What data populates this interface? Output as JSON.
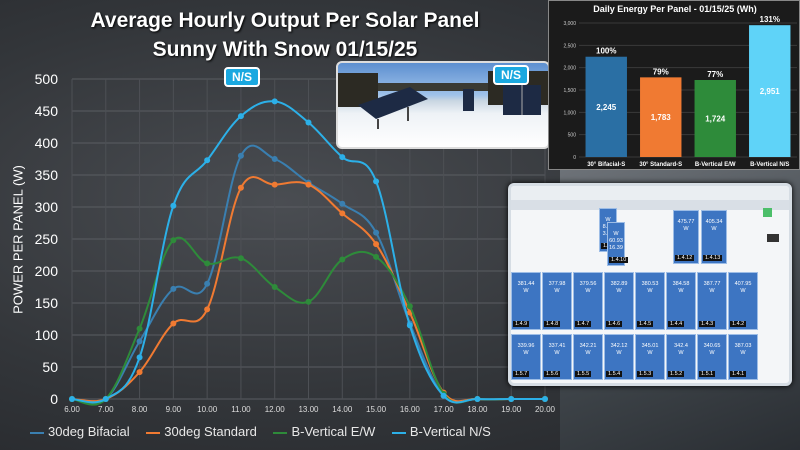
{
  "chart_data": [
    {
      "type": "line",
      "title": "Average Hourly Output Per Solar Panel",
      "subtitle": "Sunny With Snow 01/15/25",
      "ylabel": "POWER PER PANEL (W)",
      "xlabel": "",
      "x": [
        6,
        7,
        8,
        9,
        10,
        11,
        12,
        13,
        14,
        15,
        16,
        17,
        18,
        19,
        20
      ],
      "x_tick_labels": [
        "6.00",
        "7.00",
        "8.00",
        "9.00",
        "10.00",
        "11.00",
        "12.00",
        "13.00",
        "14.00",
        "15.00",
        "16.00",
        "17.00",
        "18.00",
        "19.00",
        "20.00"
      ],
      "ylim": [
        0,
        500
      ],
      "y_ticks": [
        0,
        50,
        100,
        150,
        200,
        250,
        300,
        350,
        400,
        450,
        500
      ],
      "grid": true,
      "legend": "bottom",
      "annotations": [
        "N/S"
      ],
      "series": [
        {
          "name": "30deg Bifacial",
          "color": "#3a7fb0",
          "values": [
            0,
            0,
            90,
            172,
            180,
            380,
            375,
            338,
            305,
            260,
            118,
            5,
            0,
            0,
            0
          ]
        },
        {
          "name": "30deg Standard",
          "color": "#f07a32",
          "values": [
            0,
            0,
            42,
            118,
            140,
            330,
            335,
            335,
            290,
            242,
            135,
            10,
            0,
            0,
            0
          ]
        },
        {
          "name": "B-Vertical E/W",
          "color": "#2e8b3a",
          "values": [
            0,
            0,
            110,
            248,
            212,
            220,
            175,
            152,
            218,
            222,
            145,
            8,
            0,
            0,
            0
          ]
        },
        {
          "name": "B-Vertical N/S",
          "color": "#2cb0e8",
          "values": [
            0,
            0,
            65,
            302,
            373,
            442,
            465,
            432,
            378,
            340,
            115,
            5,
            0,
            0,
            0
          ]
        }
      ]
    },
    {
      "type": "bar",
      "title": "Daily Energy Per Panel - 01/15/25 (Wh)",
      "categories": [
        "30° Bifacial-S",
        "30° Standard-S",
        "B-Vertical E/W",
        "B-Vertical N/S"
      ],
      "values": [
        2245,
        1783,
        1724,
        2951
      ],
      "value_labels": [
        "2,245",
        "1,783",
        "1,724",
        "2,951"
      ],
      "percent_labels": [
        "100%",
        "79%",
        "77%",
        "131%"
      ],
      "colors": [
        "#2a6fa4",
        "#f07a32",
        "#2e8b3a",
        "#5fd3f8"
      ],
      "ylim": [
        0,
        3000
      ],
      "y_ticks": [
        0,
        500,
        1000,
        1500,
        2000,
        2500,
        3000
      ],
      "y_tick_labels": [
        "0",
        "500",
        "1,000",
        "1,500",
        "2,000",
        "2,500",
        "3,000"
      ]
    }
  ],
  "photo": {
    "tags": [
      "N/S"
    ]
  },
  "monitor": {
    "upper": [
      {
        "value": "W\n8.62\n3.42",
        "label": "1.4.11"
      },
      {
        "value": "W\n60.93\n16.39",
        "label": "1.4.10"
      },
      {
        "value": "475.77\nW",
        "label": "1.4.12"
      },
      {
        "value": "405.34\nW",
        "label": "1.4.13"
      }
    ],
    "row1": [
      {
        "value": "381.44\nW",
        "label": "1.4.9"
      },
      {
        "value": "377.98\nW",
        "label": "1.4.8"
      },
      {
        "value": "379.56\nW",
        "label": "1.4.7"
      },
      {
        "value": "382.89\nW",
        "label": "1.4.6"
      },
      {
        "value": "380.53\nW",
        "label": "1.4.5"
      },
      {
        "value": "384.58\nW",
        "label": "1.4.4"
      },
      {
        "value": "387.77\nW",
        "label": "1.4.3"
      },
      {
        "value": "407.95\nW",
        "label": "1.4.2"
      }
    ],
    "row2": [
      {
        "value": "339.96\nW",
        "label": "1.5.7"
      },
      {
        "value": "337.41\nW",
        "label": "1.5.6"
      },
      {
        "value": "342.21\nW",
        "label": "1.5.5"
      },
      {
        "value": "342.12\nW",
        "label": "1.5.4"
      },
      {
        "value": "345.01\nW",
        "label": "1.5.3"
      },
      {
        "value": "342.4\nW",
        "label": "1.5.2"
      },
      {
        "value": "340.65\nW",
        "label": "1.5.1"
      },
      {
        "value": "387.03\nW",
        "label": "1.4.1"
      }
    ]
  }
}
